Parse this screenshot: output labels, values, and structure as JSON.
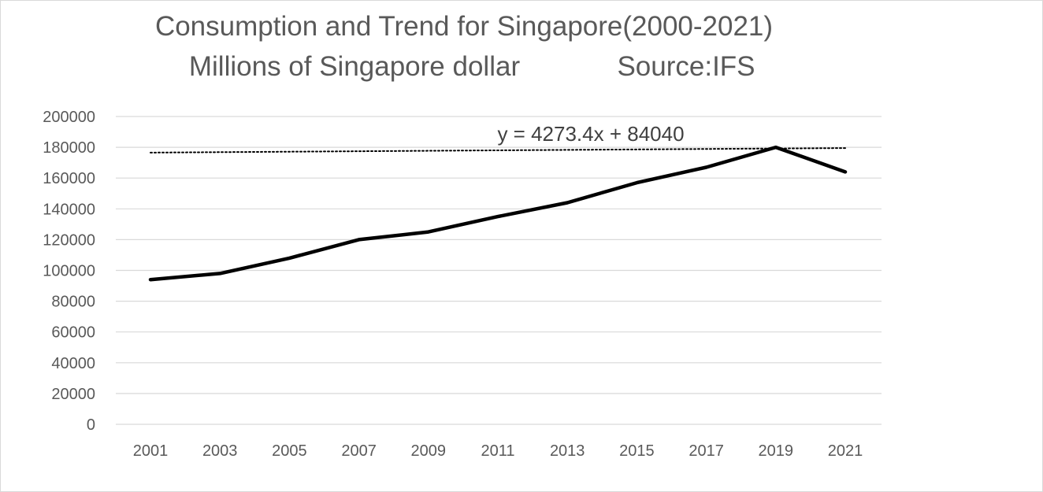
{
  "chart_data": {
    "type": "line",
    "title": "Consumption and Trend for Singapore(2000-2021)",
    "subtitle_left": "Millions of Singapore dollar",
    "subtitle_right": "Source:IFS",
    "xlabel": "",
    "ylabel": "",
    "ylim": [
      0,
      200000
    ],
    "y_ticks": [
      "200000",
      "180000",
      "160000",
      "140000",
      "120000",
      "100000",
      "80000",
      "60000",
      "40000",
      "20000",
      "0"
    ],
    "x_ticks": [
      "2001",
      "2003",
      "2005",
      "2007",
      "2009",
      "2011",
      "2013",
      "2015",
      "2017",
      "2019",
      "2021"
    ],
    "grid": "horizontal",
    "series": [
      {
        "kind": "actual",
        "color": "#000000",
        "points": [
          {
            "x": 2001,
            "y": 94000
          },
          {
            "x": 2003,
            "y": 98000
          },
          {
            "x": 2005,
            "y": 108000
          },
          {
            "x": 2007,
            "y": 120000
          },
          {
            "x": 2009,
            "y": 125000
          },
          {
            "x": 2011,
            "y": 135000
          },
          {
            "x": 2013,
            "y": 144000
          },
          {
            "x": 2015,
            "y": 157000
          },
          {
            "x": 2017,
            "y": 167000
          },
          {
            "x": 2019,
            "y": 180000
          },
          {
            "x": 2021,
            "y": 164000
          }
        ]
      },
      {
        "kind": "linear-trendline",
        "color": "#000000",
        "slope": 4273.4,
        "intercept": 84040,
        "x_start": 2001,
        "x_end": 2021
      }
    ],
    "annotations": [
      "y = 4273.4x + 84040"
    ]
  }
}
